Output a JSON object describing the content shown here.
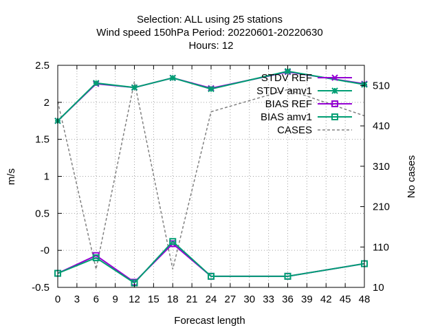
{
  "chart_data": {
    "type": "line",
    "title_lines": [
      "Selection: ALL using     25 stations",
      "Wind speed 150hPa   Period: 20220601-20220630",
      "Hours:  12"
    ],
    "xlabel": "Forecast length",
    "ylabel": "m/s",
    "y2label": "No cases",
    "xlim": [
      0,
      48
    ],
    "ylim": [
      -0.5,
      2.5
    ],
    "y2lim": [
      10,
      560
    ],
    "x_ticks": [
      0,
      3,
      6,
      9,
      12,
      15,
      18,
      21,
      24,
      27,
      30,
      33,
      36,
      39,
      42,
      45,
      48
    ],
    "y_ticks": [
      -0.5,
      0,
      0.5,
      1,
      1.5,
      2,
      2.5
    ],
    "y_tick_labels": [
      "-0.5",
      "-0",
      "0.5",
      "1",
      "1.5",
      "2",
      "2.5"
    ],
    "y2_ticks": [
      10,
      110,
      210,
      310,
      410,
      510
    ],
    "grid": true,
    "legend_position": "top-right",
    "series": [
      {
        "name": "STDV REF",
        "axis": "y1",
        "color": "#9400d3",
        "marker": "x",
        "x": [
          0,
          6,
          12,
          18,
          24,
          36,
          48
        ],
        "values": [
          1.75,
          2.25,
          2.2,
          2.33,
          2.19,
          2.41,
          2.25
        ]
      },
      {
        "name": "STDV amv1",
        "axis": "y1",
        "color": "#009e73",
        "marker": "star",
        "x": [
          0,
          6,
          12,
          18,
          24,
          36,
          48
        ],
        "values": [
          1.75,
          2.26,
          2.2,
          2.33,
          2.18,
          2.42,
          2.24
        ]
      },
      {
        "name": "BIAS REF",
        "axis": "y1",
        "color": "#9400d3",
        "marker": "square",
        "x": [
          0,
          6,
          12,
          18,
          24,
          36,
          48
        ],
        "values": [
          -0.31,
          -0.07,
          -0.43,
          0.09,
          -0.35,
          -0.35,
          -0.18
        ]
      },
      {
        "name": "BIAS amv1",
        "axis": "y1",
        "color": "#009e73",
        "marker": "square",
        "x": [
          0,
          6,
          12,
          18,
          24,
          36,
          48
        ],
        "values": [
          -0.31,
          -0.1,
          -0.44,
          0.12,
          -0.35,
          -0.35,
          -0.18
        ]
      },
      {
        "name": "CASES",
        "axis": "y2",
        "color": "#808080",
        "marker": "none",
        "dashed": true,
        "x": [
          0,
          6,
          12,
          18,
          24,
          36,
          48
        ],
        "values": [
          470,
          55,
          520,
          55,
          445,
          500,
          435
        ]
      }
    ]
  }
}
